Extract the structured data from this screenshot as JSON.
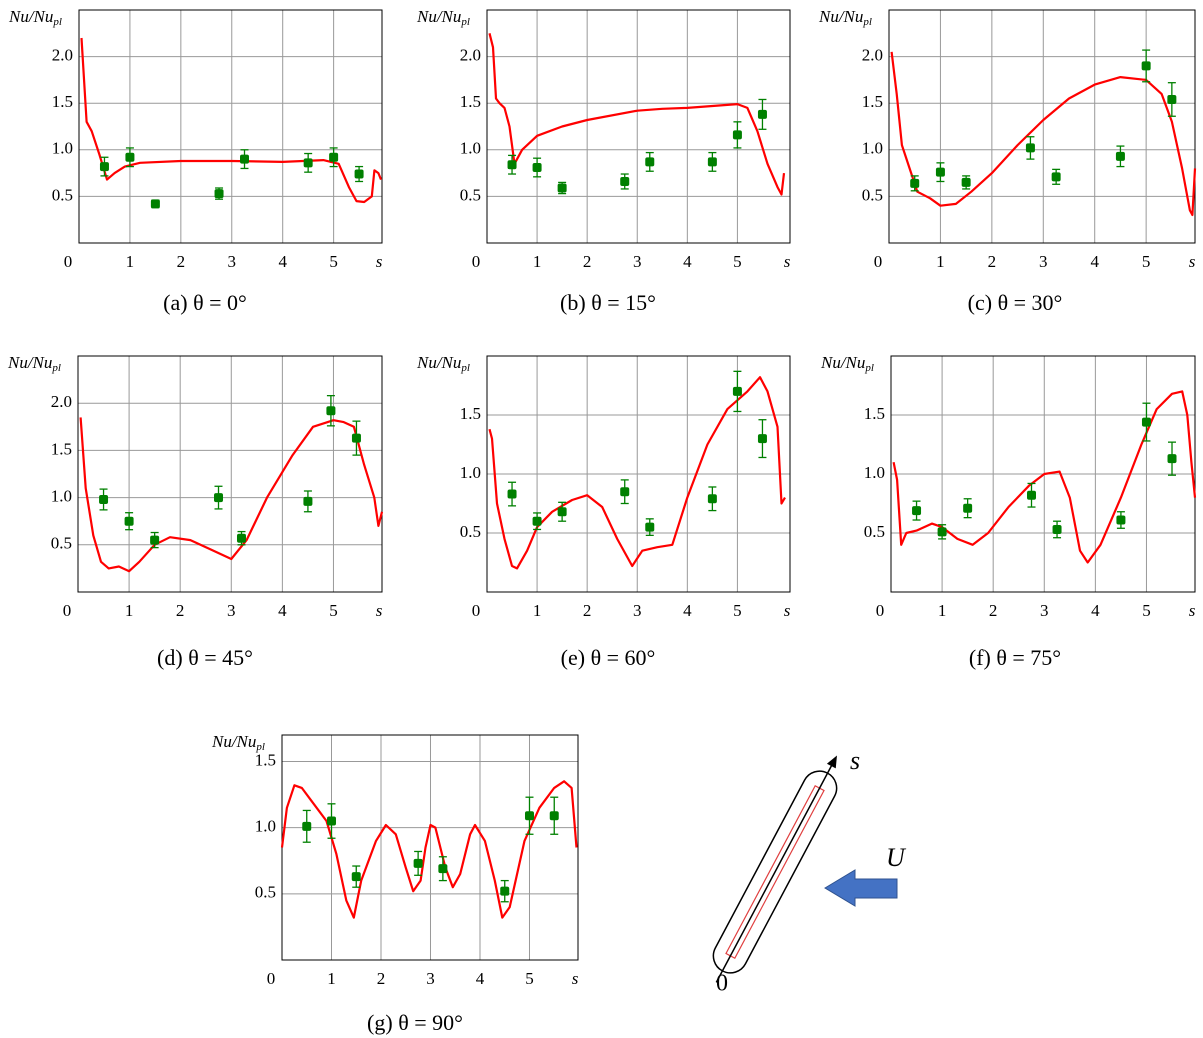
{
  "chart_data": [
    {
      "type": "line",
      "caption": "(a) θ = 0°",
      "ylabel": "Nu/Nu",
      "ylabel_sub": "pl",
      "xlabel": "s",
      "xlim": [
        0,
        5.95
      ],
      "ylim": [
        0,
        2.5
      ],
      "xticks": [
        0,
        1,
        2,
        3,
        4,
        5
      ],
      "yticks": [
        0.5,
        {
          "value": 1,
          "label": "1.0"
        },
        1.5,
        {
          "value": 2,
          "label": "2.0"
        }
      ],
      "grid": true,
      "series": [
        {
          "color": "#ff0000",
          "x": [
            0.05,
            0.15,
            0.25,
            0.4,
            0.55,
            0.7,
            0.9,
            1.2,
            2,
            3,
            4,
            4.8,
            5.1,
            5.3,
            5.45,
            5.6,
            5.75,
            5.8,
            5.88,
            5.93
          ],
          "values": [
            2.2,
            1.3,
            1.2,
            0.95,
            0.68,
            0.75,
            0.82,
            0.86,
            0.88,
            0.88,
            0.87,
            0.89,
            0.85,
            0.6,
            0.45,
            0.44,
            0.5,
            0.78,
            0.75,
            0.68
          ]
        },
        {
          "color": "#008000",
          "mode": "markers",
          "x": [
            0.5,
            1,
            1.5,
            2.75,
            3.25,
            4.5,
            5,
            5.5
          ],
          "values": [
            0.82,
            0.92,
            0.42,
            0.53,
            0.9,
            0.86,
            0.92,
            0.74
          ],
          "errors": [
            0.1,
            0.1,
            0.04,
            0.06,
            0.1,
            0.1,
            0.1,
            0.08
          ]
        }
      ]
    },
    {
      "type": "line",
      "caption": "(b) θ = 15°",
      "ylabel": "Nu/Nu",
      "ylabel_sub": "pl",
      "xlabel": "s",
      "xlim": [
        0,
        6.05
      ],
      "ylim": [
        0,
        2.5
      ],
      "xticks": [
        0,
        1,
        2,
        3,
        4,
        5
      ],
      "yticks": [
        0.5,
        {
          "value": 1,
          "label": "1.0"
        },
        1.5,
        {
          "value": 2,
          "label": "2.0"
        }
      ],
      "grid": true,
      "series": [
        {
          "color": "#ff0000",
          "x": [
            0.05,
            0.12,
            0.18,
            0.25,
            0.35,
            0.45,
            0.55,
            0.7,
            1,
            1.5,
            2,
            3,
            3.5,
            4,
            4.5,
            5,
            5.2,
            5.4,
            5.6,
            5.8,
            5.88,
            5.93
          ],
          "values": [
            2.25,
            2.1,
            1.55,
            1.5,
            1.45,
            1.25,
            0.85,
            1.0,
            1.15,
            1.25,
            1.32,
            1.42,
            1.44,
            1.45,
            1.47,
            1.49,
            1.45,
            1.2,
            0.85,
            0.6,
            0.52,
            0.75
          ]
        },
        {
          "color": "#008000",
          "mode": "markers",
          "x": [
            0.5,
            1,
            1.5,
            2.75,
            3.25,
            4.5,
            5,
            5.5
          ],
          "values": [
            0.84,
            0.81,
            0.59,
            0.66,
            0.87,
            0.87,
            1.16,
            1.38
          ],
          "errors": [
            0.1,
            0.1,
            0.06,
            0.08,
            0.1,
            0.1,
            0.14,
            0.16
          ]
        }
      ]
    },
    {
      "type": "line",
      "caption": "(c) θ = 30°",
      "ylabel": "Nu/Nu",
      "ylabel_sub": "pl",
      "xlabel": "s",
      "xlim": [
        0,
        5.95
      ],
      "ylim": [
        0,
        2.5
      ],
      "xticks": [
        0,
        1,
        2,
        3,
        4,
        5
      ],
      "yticks": [
        0.5,
        {
          "value": 1,
          "label": "1.0"
        },
        1.5,
        {
          "value": 2,
          "label": "2.0"
        }
      ],
      "grid": true,
      "series": [
        {
          "color": "#ff0000",
          "x": [
            0.05,
            0.15,
            0.25,
            0.4,
            0.55,
            0.8,
            1.0,
            1.3,
            1.6,
            2,
            2.5,
            3,
            3.5,
            4,
            4.5,
            5,
            5.3,
            5.5,
            5.7,
            5.85,
            5.9,
            5.95
          ],
          "values": [
            2.05,
            1.6,
            1.05,
            0.8,
            0.55,
            0.48,
            0.4,
            0.42,
            0.55,
            0.75,
            1.05,
            1.32,
            1.55,
            1.7,
            1.78,
            1.75,
            1.6,
            1.3,
            0.8,
            0.35,
            0.3,
            0.8
          ]
        },
        {
          "color": "#008000",
          "mode": "markers",
          "x": [
            0.5,
            1,
            1.5,
            2.75,
            3.25,
            4.5,
            5,
            5.5
          ],
          "values": [
            0.64,
            0.76,
            0.65,
            1.02,
            0.71,
            0.93,
            1.9,
            1.54
          ],
          "errors": [
            0.08,
            0.1,
            0.07,
            0.12,
            0.08,
            0.11,
            0.17,
            0.18
          ]
        }
      ]
    },
    {
      "type": "line",
      "caption": "(d) θ = 45°",
      "ylabel": "Nu/Nu",
      "ylabel_sub": "pl",
      "xlabel": "s",
      "xlim": [
        0,
        5.95
      ],
      "ylim": [
        0,
        2.5
      ],
      "xticks": [
        0,
        1,
        2,
        3,
        4,
        5
      ],
      "yticks": [
        0.5,
        {
          "value": 1,
          "label": "1.0"
        },
        1.5,
        {
          "value": 2,
          "label": "2.0"
        }
      ],
      "grid": true,
      "series": [
        {
          "color": "#ff0000",
          "x": [
            0.05,
            0.15,
            0.3,
            0.45,
            0.6,
            0.8,
            1.0,
            1.2,
            1.5,
            1.8,
            2.2,
            2.6,
            3.0,
            3.3,
            3.7,
            4.2,
            4.6,
            5.0,
            5.2,
            5.4,
            5.6,
            5.8,
            5.88,
            5.95
          ],
          "values": [
            1.85,
            1.1,
            0.6,
            0.32,
            0.25,
            0.27,
            0.22,
            0.32,
            0.5,
            0.58,
            0.55,
            0.45,
            0.35,
            0.55,
            1.0,
            1.45,
            1.75,
            1.82,
            1.8,
            1.75,
            1.35,
            1.0,
            0.7,
            0.85
          ]
        },
        {
          "color": "#008000",
          "mode": "markers",
          "x": [
            0.5,
            1,
            1.5,
            2.75,
            3.2,
            4.5,
            4.95,
            5.45
          ],
          "values": [
            0.98,
            0.75,
            0.55,
            1.0,
            0.57,
            0.96,
            1.92,
            1.63
          ],
          "errors": [
            0.11,
            0.09,
            0.08,
            0.12,
            0.07,
            0.11,
            0.16,
            0.18
          ]
        }
      ]
    },
    {
      "type": "line",
      "caption": "(e) θ = 60°",
      "ylabel": "Nu/Nu",
      "ylabel_sub": "pl",
      "xlabel": "s",
      "xlim": [
        0,
        6.05
      ],
      "ylim": [
        0,
        2.0
      ],
      "xticks": [
        0,
        1,
        2,
        3,
        4,
        5
      ],
      "yticks": [
        0.5,
        {
          "value": 1,
          "label": "1.0"
        },
        1.5
      ],
      "grid": true,
      "series": [
        {
          "color": "#ff0000",
          "x": [
            0.05,
            0.1,
            0.2,
            0.35,
            0.5,
            0.6,
            0.8,
            1.0,
            1.3,
            1.7,
            2.0,
            2.3,
            2.6,
            2.9,
            3.1,
            3.4,
            3.7,
            4.0,
            4.4,
            4.8,
            5.2,
            5.45,
            5.6,
            5.8,
            5.88,
            5.95
          ],
          "values": [
            1.38,
            1.3,
            0.75,
            0.45,
            0.22,
            0.2,
            0.35,
            0.55,
            0.68,
            0.78,
            0.82,
            0.72,
            0.45,
            0.22,
            0.35,
            0.38,
            0.4,
            0.8,
            1.25,
            1.55,
            1.7,
            1.82,
            1.7,
            1.4,
            0.75,
            0.8
          ]
        },
        {
          "color": "#008000",
          "mode": "markers",
          "x": [
            0.5,
            1,
            1.5,
            2.75,
            3.25,
            4.5,
            5,
            5.5
          ],
          "values": [
            0.83,
            0.6,
            0.68,
            0.85,
            0.55,
            0.79,
            1.7,
            1.3
          ],
          "errors": [
            0.1,
            0.07,
            0.08,
            0.1,
            0.07,
            0.1,
            0.17,
            0.16
          ]
        }
      ]
    },
    {
      "type": "line",
      "caption": "(f) θ = 75°",
      "ylabel": "Nu/Nu",
      "ylabel_sub": "pl",
      "xlabel": "s",
      "xlim": [
        0,
        5.95
      ],
      "ylim": [
        0,
        2.0
      ],
      "xticks": [
        0,
        1,
        2,
        3,
        4,
        5
      ],
      "yticks": [
        0.5,
        {
          "value": 1,
          "label": "1.0"
        },
        1.5
      ],
      "grid": true,
      "series": [
        {
          "color": "#ff0000",
          "x": [
            0.05,
            0.12,
            0.2,
            0.3,
            0.5,
            0.8,
            1.0,
            1.3,
            1.6,
            1.9,
            2.3,
            2.7,
            3.0,
            3.3,
            3.5,
            3.7,
            3.85,
            4.1,
            4.5,
            4.9,
            5.2,
            5.5,
            5.7,
            5.8,
            5.88,
            5.95
          ],
          "values": [
            1.1,
            0.95,
            0.4,
            0.5,
            0.52,
            0.58,
            0.55,
            0.45,
            0.4,
            0.5,
            0.72,
            0.9,
            1.0,
            1.02,
            0.8,
            0.35,
            0.25,
            0.4,
            0.8,
            1.25,
            1.55,
            1.68,
            1.7,
            1.5,
            1.1,
            0.8
          ]
        },
        {
          "color": "#008000",
          "mode": "markers",
          "x": [
            0.5,
            1,
            1.5,
            2.75,
            3.25,
            4.5,
            5,
            5.5
          ],
          "values": [
            0.69,
            0.51,
            0.71,
            0.82,
            0.53,
            0.61,
            1.44,
            1.13
          ],
          "errors": [
            0.08,
            0.06,
            0.08,
            0.1,
            0.07,
            0.07,
            0.16,
            0.14
          ]
        }
      ]
    },
    {
      "type": "line",
      "caption": "(g) θ = 90°",
      "ylabel": "Nu/Nu",
      "ylabel_sub": "pl",
      "xlabel": "s",
      "xlim": [
        0,
        5.98
      ],
      "ylim": [
        0,
        1.7
      ],
      "xticks": [
        0,
        1,
        2,
        3,
        4,
        5
      ],
      "yticks": [
        0.5,
        {
          "value": 1,
          "label": "1.0"
        },
        1.5
      ],
      "grid": true,
      "series": [
        {
          "color": "#ff0000",
          "x": [
            0.0,
            0.1,
            0.25,
            0.4,
            0.6,
            0.9,
            1.1,
            1.3,
            1.45,
            1.6,
            1.9,
            2.1,
            2.3,
            2.5,
            2.65,
            2.8,
            2.9,
            3.0,
            3.1,
            3.3,
            3.45,
            3.6,
            3.8,
            3.9,
            4.1,
            4.3,
            4.45,
            4.6,
            4.9,
            5.2,
            5.5,
            5.7,
            5.85,
            5.95
          ],
          "values": [
            0.85,
            1.15,
            1.32,
            1.3,
            1.2,
            1.05,
            0.8,
            0.45,
            0.32,
            0.6,
            0.9,
            1.02,
            0.95,
            0.7,
            0.52,
            0.6,
            0.85,
            1.02,
            1.0,
            0.7,
            0.55,
            0.65,
            0.95,
            1.02,
            0.9,
            0.6,
            0.32,
            0.4,
            0.9,
            1.15,
            1.3,
            1.35,
            1.3,
            0.85
          ]
        },
        {
          "color": "#008000",
          "mode": "markers",
          "x": [
            0.5,
            1,
            1.5,
            2.75,
            3.25,
            4.5,
            5,
            5.5
          ],
          "values": [
            1.01,
            1.05,
            0.63,
            0.73,
            0.69,
            0.52,
            1.09,
            1.09
          ],
          "errors": [
            0.12,
            0.13,
            0.08,
            0.09,
            0.09,
            0.08,
            0.14,
            0.14
          ]
        }
      ]
    }
  ],
  "diagram": {
    "axis_label": "s",
    "flow_label": "U",
    "origin_label": "0"
  }
}
